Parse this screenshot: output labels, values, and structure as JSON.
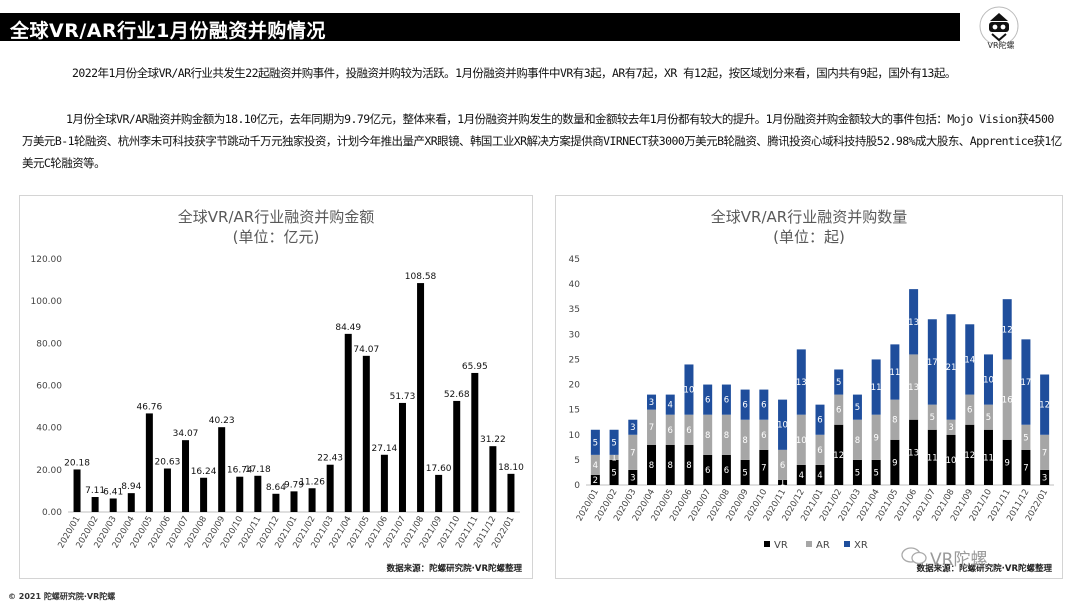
{
  "header": {
    "title": "全球VR/AR行业1月份融资并购情况",
    "logo_text": "VR陀螺"
  },
  "paragraphs": [
    "2022年1月份全球VR/AR行业共发生22起融资并购事件，投融资并购较为活跃。1月份融资并购事件中VR有3起，AR有7起，XR 有12起，按区域划分来看，国内共有9起，国外有13起。",
    "1月份全球VR/AR融资并购金额为18.10亿元，去年同期为9.79亿元，整体来看，1月份融资并购发生的数量和金额较去年1月份都有较大的提升。1月份融资并购金额较大的事件包括：Mojo Vision获4500万美元B-1轮融资、杭州李未可科技获字节跳动千万元独家投资，计划今年推出量产XR眼镜、韩国工业XR解决方案提供商VIRNECT获3000万美元B轮融资、腾讯投资心域科技持股52.98%成大股东、Apprentice获1亿美元C轮融资等。"
  ],
  "footer": "© 2021 陀螺研究院·VR陀螺",
  "watermark": "VR陀螺",
  "chart_data": [
    {
      "type": "bar",
      "title": "全球VR/AR行业融资并购金额",
      "subtitle": "(单位：亿元)",
      "source": "数据来源：陀螺研究院·VR陀螺整理",
      "categories": [
        "2020/01",
        "2020/02",
        "2020/03",
        "2020/04",
        "2020/05",
        "2020/06",
        "2020/07",
        "2020/08",
        "2020/09",
        "2020/10",
        "2020/11",
        "2020/12",
        "2021/01",
        "2021/02",
        "2021/03",
        "2021/04",
        "2021/05",
        "2021/06",
        "2021/07",
        "2021/08",
        "2021/09",
        "2021/10",
        "2021/11",
        "2011/12",
        "2022/01"
      ],
      "values": [
        20.18,
        7.11,
        6.41,
        8.94,
        46.76,
        20.63,
        34.07,
        16.24,
        40.23,
        16.74,
        17.18,
        8.64,
        9.79,
        11.26,
        22.43,
        84.49,
        74.07,
        27.14,
        51.73,
        108.58,
        17.6,
        52.68,
        65.95,
        31.22,
        18.1
      ],
      "labels": [
        "20.18",
        "7.11",
        "6.41",
        "8.94",
        "46.76",
        "20.63",
        "34.07",
        "16.24",
        "40.23",
        "16.74",
        "17.18",
        "8.64",
        "9.79",
        "11.26",
        "22.43",
        "84.49",
        "74.07",
        "27.14",
        "51.73",
        "108.58",
        "17.60",
        "52.68",
        "65.95",
        "31.22",
        "18.10"
      ],
      "yticks": [
        "0.00",
        "20.00",
        "40.00",
        "60.00",
        "80.00",
        "100.00",
        "120.00"
      ],
      "ylim": [
        0,
        120
      ],
      "color": "#000000"
    },
    {
      "type": "bar",
      "stacked": true,
      "title": "全球VR/AR行业融资并购数量",
      "subtitle": "(单位：起)",
      "source": "数据来源：陀螺研究院·VR陀螺整理",
      "categories": [
        "2020/01",
        "2020/02",
        "2020/03",
        "2020/04",
        "2020/05",
        "2020/06",
        "2020/07",
        "2020/08",
        "2020/09",
        "2020/10",
        "2020/11",
        "2020/12",
        "2021/01",
        "2021/02",
        "2021/03",
        "2021/04",
        "2021/05",
        "2021/06",
        "2021/07",
        "2021/08",
        "2021/09",
        "2021/10",
        "2021/11",
        "2011/12",
        "2022/01"
      ],
      "series": [
        {
          "name": "VR",
          "color": "#000000",
          "values": [
            2,
            5,
            3,
            8,
            8,
            8,
            6,
            6,
            5,
            7,
            1,
            4,
            4,
            12,
            5,
            5,
            9,
            13,
            11,
            10,
            12,
            11,
            9,
            7,
            3
          ]
        },
        {
          "name": "AR",
          "color": "#a6a6a6",
          "values": [
            4,
            1,
            7,
            7,
            6,
            6,
            8,
            8,
            8,
            6,
            6,
            10,
            6,
            6,
            8,
            9,
            8,
            13,
            5,
            3,
            6,
            5,
            16,
            5,
            7
          ]
        },
        {
          "name": "XR",
          "color": "#1f4e9c",
          "values": [
            5,
            5,
            3,
            3,
            4,
            10,
            6,
            6,
            6,
            6,
            10,
            13,
            6,
            5,
            5,
            11,
            11,
            13,
            17,
            21,
            14,
            10,
            12,
            17,
            12
          ]
        }
      ],
      "legend_position": "bottom",
      "yticks": [
        "0",
        "5",
        "10",
        "15",
        "20",
        "25",
        "30",
        "35",
        "40",
        "45"
      ],
      "ylim": [
        0,
        45
      ]
    }
  ]
}
